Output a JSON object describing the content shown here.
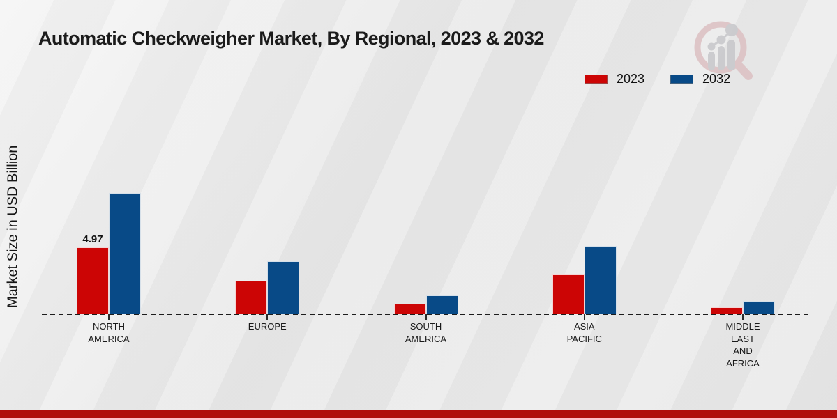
{
  "page": {
    "title": "Automatic Checkweigher Market, By Regional, 2023 & 2032",
    "y_axis_label": "Market Size in USD Billion",
    "background_color": "#e9e9e9",
    "footer_bar_color": "#b00e0e"
  },
  "legend": {
    "position": "top-right",
    "items": [
      {
        "label": "2023",
        "color": "#cc0505"
      },
      {
        "label": "2032",
        "color": "#084a87"
      }
    ]
  },
  "watermark": {
    "name": "magnifier-bar-chart-logo",
    "ring_color": "#dcc0c2",
    "glyph_color": "#c7c7ca"
  },
  "chart_data": {
    "type": "bar",
    "title": "Automatic Checkweigher Market, By Regional, 2023 & 2032",
    "xlabel": "",
    "ylabel": "Market Size in USD Billion",
    "categories": [
      "NORTH AMERICA",
      "EUROPE",
      "SOUTH AMERICA",
      "ASIA PACIFIC",
      "MIDDLE EAST AND AFRICA"
    ],
    "category_label_lines": [
      [
        "NORTH",
        "AMERICA"
      ],
      [
        "EUROPE"
      ],
      [
        "SOUTH",
        "AMERICA"
      ],
      [
        "ASIA",
        "PACIFIC"
      ],
      [
        "MIDDLE",
        "EAST",
        "AND",
        "AFRICA"
      ]
    ],
    "series": [
      {
        "name": "2023",
        "color": "#cc0505",
        "values": [
          4.97,
          2.48,
          0.78,
          2.97,
          0.52
        ]
      },
      {
        "name": "2032",
        "color": "#084a87",
        "values": [
          9.0,
          3.95,
          1.4,
          5.1,
          1.0
        ]
      }
    ],
    "visible_value_labels": [
      {
        "category": "NORTH AMERICA",
        "series": "2023",
        "text": "4.97"
      }
    ],
    "ylim": [
      0,
      10
    ],
    "grid": false,
    "baseline_style": "dashed",
    "legend_position": "top-right"
  }
}
